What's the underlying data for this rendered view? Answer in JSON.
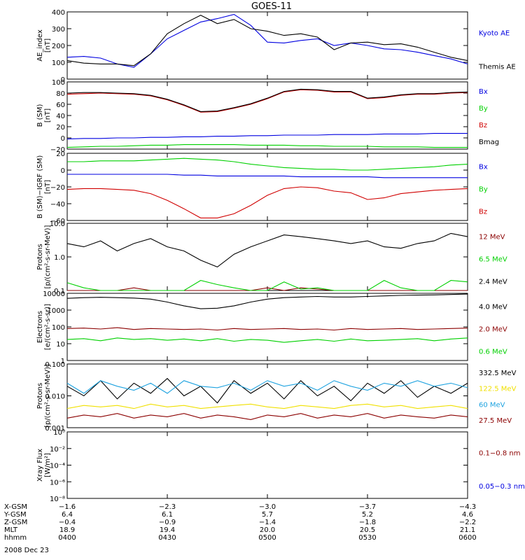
{
  "title": "GOES-11",
  "date_label": "2008 Dec 23",
  "colors": {
    "black": "#000000",
    "blue": "#0000e0",
    "green": "#00d000",
    "red": "#d00000",
    "darkred": "#8b0000",
    "cyan": "#1fa3e0",
    "yellow": "#f0e000"
  },
  "chart_data": [
    {
      "type": "line",
      "id": "ae",
      "ylabel": "AE_index\n[nT]",
      "yscale": "linear",
      "ylim": [
        0,
        400
      ],
      "yticks": [
        "0",
        "100",
        "200",
        "300",
        "400"
      ],
      "x": [
        0,
        5,
        10,
        15,
        20,
        25,
        30,
        35,
        40,
        45,
        50,
        55,
        60,
        65,
        70,
        75,
        80,
        85,
        90,
        95,
        100,
        105,
        110,
        115,
        120
      ],
      "series": [
        {
          "name": "Kyoto AE",
          "color": "blue",
          "values": [
            130,
            135,
            125,
            90,
            70,
            150,
            240,
            290,
            340,
            360,
            385,
            320,
            220,
            215,
            230,
            240,
            200,
            215,
            200,
            180,
            175,
            160,
            140,
            120,
            90
          ]
        },
        {
          "name": "Themis AE",
          "color": "black",
          "values": [
            110,
            95,
            90,
            90,
            80,
            150,
            270,
            330,
            380,
            330,
            355,
            300,
            285,
            260,
            270,
            250,
            175,
            215,
            220,
            205,
            210,
            190,
            160,
            130,
            110
          ]
        }
      ]
    },
    {
      "type": "line",
      "id": "bsm",
      "ylabel": "B (SM)\n[nT]",
      "yscale": "linear",
      "ylim": [
        -20,
        100
      ],
      "yticks": [
        "−20",
        "0",
        "20",
        "40",
        "60",
        "80",
        "100"
      ],
      "x": [
        0,
        5,
        10,
        15,
        20,
        25,
        30,
        35,
        40,
        45,
        50,
        55,
        60,
        65,
        70,
        75,
        80,
        85,
        90,
        95,
        100,
        105,
        110,
        115,
        120
      ],
      "series": [
        {
          "name": "Bx",
          "color": "blue",
          "values": [
            -2,
            -1,
            -1,
            0,
            0,
            1,
            1,
            2,
            2,
            3,
            3,
            4,
            4,
            5,
            5,
            5,
            6,
            6,
            6,
            7,
            7,
            7,
            8,
            8,
            8
          ]
        },
        {
          "name": "By",
          "color": "green",
          "values": [
            -17,
            -16,
            -15,
            -15,
            -14,
            -13,
            -13,
            -12,
            -12,
            -12,
            -12,
            -13,
            -13,
            -13,
            -14,
            -14,
            -15,
            -15,
            -15,
            -16,
            -16,
            -16,
            -17,
            -17,
            -17
          ]
        },
        {
          "name": "Bz",
          "color": "red",
          "values": [
            78,
            79,
            80,
            79,
            78,
            75,
            68,
            58,
            46,
            47,
            53,
            60,
            70,
            82,
            86,
            85,
            82,
            82,
            70,
            72,
            76,
            78,
            78,
            80,
            81
          ]
        },
        {
          "name": "Bmag",
          "color": "black",
          "values": [
            80,
            81,
            81,
            80,
            79,
            76,
            69,
            59,
            47,
            48,
            54,
            61,
            71,
            83,
            87,
            86,
            83,
            83,
            71,
            73,
            77,
            79,
            79,
            81,
            82
          ]
        }
      ]
    },
    {
      "type": "line",
      "id": "bsm_igrf",
      "ylabel": "B (SM)−IGRF (SM)\n[nT]",
      "yscale": "linear",
      "ylim": [
        -60,
        20
      ],
      "yticks": [
        "−60",
        "−40",
        "−20",
        "0",
        "20"
      ],
      "x": [
        0,
        5,
        10,
        15,
        20,
        25,
        30,
        35,
        40,
        45,
        50,
        55,
        60,
        65,
        70,
        75,
        80,
        85,
        90,
        95,
        100,
        105,
        110,
        115,
        120
      ],
      "series": [
        {
          "name": "Bx",
          "color": "blue",
          "values": [
            -5,
            -5,
            -5,
            -5,
            -5,
            -5,
            -5,
            -6,
            -6,
            -7,
            -7,
            -7,
            -7,
            -7,
            -8,
            -8,
            -8,
            -8,
            -8,
            -9,
            -9,
            -9,
            -9,
            -9,
            -9
          ]
        },
        {
          "name": "By",
          "color": "green",
          "values": [
            10,
            10,
            11,
            11,
            11,
            12,
            13,
            14,
            13,
            12,
            10,
            7,
            5,
            3,
            2,
            1,
            1,
            0,
            0,
            1,
            2,
            3,
            4,
            6,
            7
          ]
        },
        {
          "name": "Bz",
          "color": "red",
          "values": [
            -23,
            -22,
            -22,
            -23,
            -24,
            -28,
            -36,
            -46,
            -57,
            -57,
            -52,
            -42,
            -30,
            -22,
            -20,
            -21,
            -25,
            -27,
            -35,
            -33,
            -28,
            -26,
            -24,
            -23,
            -22
          ]
        }
      ]
    },
    {
      "type": "line",
      "id": "protons1",
      "ylabel": "Protons\n[p/(cm²-s-sr-MeV)]",
      "yscale": "log",
      "ylim": [
        0.1,
        10
      ],
      "yticks": [
        "0.1",
        "1.0",
        "10.0"
      ],
      "x": [
        0,
        5,
        10,
        15,
        20,
        25,
        30,
        35,
        40,
        45,
        50,
        55,
        60,
        65,
        70,
        75,
        80,
        85,
        90,
        95,
        100,
        105,
        110,
        115,
        120
      ],
      "series": [
        {
          "name": "12 MeV",
          "color": "darkred",
          "values": [
            0.08,
            0.08,
            0.08,
            0.09,
            0.12,
            0.08,
            0.08,
            0.08,
            0.08,
            0.08,
            0.08,
            0.08,
            0.12,
            0.08,
            0.12,
            0.11,
            0.08,
            0.08,
            0.08,
            0.08,
            0.08,
            0.08,
            0.08,
            0.08,
            0.08
          ]
        },
        {
          "name": "6.5 MeV",
          "color": "green",
          "values": [
            0.17,
            0.12,
            0.1,
            0.08,
            0.08,
            0.08,
            0.08,
            0.08,
            0.2,
            0.15,
            0.12,
            0.1,
            0.09,
            0.18,
            0.11,
            0.12,
            0.09,
            0.08,
            0.1,
            0.2,
            0.12,
            0.08,
            0.1,
            0.2,
            0.18
          ]
        },
        {
          "name": "2.4 MeV",
          "color": "black",
          "values": [
            2.5,
            2.0,
            3.0,
            1.5,
            2.5,
            3.5,
            2.0,
            1.5,
            0.8,
            0.5,
            1.2,
            2.0,
            3.0,
            4.5,
            4.0,
            3.5,
            3.0,
            2.5,
            3.0,
            2.0,
            1.8,
            2.5,
            3.0,
            5.0,
            4.0
          ]
        }
      ]
    },
    {
      "type": "line",
      "id": "electrons",
      "ylabel": "Electrons\n[e/(cm²-s-sr)]",
      "yscale": "log",
      "ylim": [
        1,
        10000
      ],
      "yticks": [
        "1",
        "10",
        "100",
        "1000",
        "10000"
      ],
      "x": [
        0,
        5,
        10,
        15,
        20,
        25,
        30,
        35,
        40,
        45,
        50,
        55,
        60,
        65,
        70,
        75,
        80,
        85,
        90,
        95,
        100,
        105,
        110,
        115,
        120
      ],
      "series": [
        {
          "name": "4.0 MeV",
          "color": "black",
          "values": [
            5000,
            5500,
            5800,
            5500,
            5200,
            4500,
            3000,
            1800,
            1200,
            1300,
            1800,
            3000,
            4500,
            5500,
            6000,
            6500,
            6000,
            6000,
            6500,
            7000,
            7500,
            7800,
            8000,
            8500,
            9000
          ]
        },
        {
          "name": "2.0 MeV",
          "color": "darkred",
          "values": [
            80,
            85,
            75,
            90,
            70,
            80,
            75,
            70,
            75,
            65,
            80,
            70,
            75,
            80,
            70,
            75,
            65,
            80,
            70,
            75,
            80,
            70,
            75,
            80,
            85
          ]
        },
        {
          "name": "0.6 MeV",
          "color": "green",
          "values": [
            18,
            20,
            15,
            22,
            18,
            20,
            16,
            19,
            15,
            20,
            14,
            18,
            16,
            12,
            15,
            18,
            14,
            19,
            15,
            16,
            18,
            20,
            15,
            19,
            22
          ]
        }
      ]
    },
    {
      "type": "line",
      "id": "protons2",
      "ylabel": "Protons\n[p/(cm²-s-sr-MeV)]",
      "yscale": "log",
      "ylim": [
        0.001,
        0.1
      ],
      "yticks": [
        "0.001",
        "0.010",
        "0.100"
      ],
      "x": [
        0,
        5,
        10,
        15,
        20,
        25,
        30,
        35,
        40,
        45,
        50,
        55,
        60,
        65,
        70,
        75,
        80,
        85,
        90,
        95,
        100,
        105,
        110,
        115,
        120
      ],
      "series": [
        {
          "name": "332.5 MeV",
          "color": "black",
          "values": [
            0.02,
            0.01,
            0.03,
            0.008,
            0.025,
            0.012,
            0.035,
            0.01,
            0.02,
            0.006,
            0.03,
            0.012,
            0.025,
            0.008,
            0.03,
            0.01,
            0.02,
            0.007,
            0.025,
            0.012,
            0.03,
            0.009,
            0.02,
            0.012,
            0.025
          ]
        },
        {
          "name": "122.5 MeV",
          "color": "yellow",
          "values": [
            0.004,
            0.005,
            0.0045,
            0.005,
            0.004,
            0.0055,
            0.0045,
            0.005,
            0.004,
            0.0045,
            0.005,
            0.0055,
            0.0045,
            0.004,
            0.005,
            0.0045,
            0.004,
            0.005,
            0.0055,
            0.0045,
            0.005,
            0.004,
            0.0045,
            0.005,
            0.004
          ]
        },
        {
          "name": "60 MeV",
          "color": "cyan",
          "values": [
            0.025,
            0.012,
            0.03,
            0.02,
            0.015,
            0.025,
            0.012,
            0.03,
            0.02,
            0.018,
            0.025,
            0.015,
            0.03,
            0.02,
            0.025,
            0.015,
            0.03,
            0.02,
            0.015,
            0.025,
            0.02,
            0.03,
            0.02,
            0.025,
            0.018
          ]
        },
        {
          "name": "27.5 MeV",
          "color": "darkred",
          "values": [
            0.002,
            0.0025,
            0.0022,
            0.0028,
            0.002,
            0.0025,
            0.0022,
            0.0028,
            0.002,
            0.0025,
            0.0022,
            0.0018,
            0.0025,
            0.0022,
            0.0028,
            0.002,
            0.0025,
            0.0022,
            0.0028,
            0.002,
            0.0025,
            0.0022,
            0.002,
            0.0025,
            0.0022
          ]
        }
      ]
    },
    {
      "type": "line",
      "id": "xray",
      "ylabel": "Xray Flux\n[W/m²]",
      "yscale": "log",
      "ylim": [
        1e-09,
        1
      ],
      "yticks": [
        "10⁻⁸",
        "10⁻⁶",
        "10⁻⁴",
        "10⁻²",
        "10⁰"
      ],
      "x": [],
      "series": [
        {
          "name": "0.1−0.8 nm",
          "color": "darkred",
          "values": []
        },
        {
          "name": "0.05−0.3 nm",
          "color": "blue",
          "values": []
        }
      ]
    }
  ],
  "x_axis": {
    "row_labels": [
      "X-GSM",
      "Y-GSM",
      "Z-GSM",
      "MLT",
      "hhmm"
    ],
    "columns": [
      {
        "values": [
          "−1.6",
          "6.4",
          "−0.4",
          "18.9",
          "0400"
        ]
      },
      {
        "values": [
          "−2.3",
          "6.1",
          "−0.9",
          "19.4",
          "0430"
        ]
      },
      {
        "values": [
          "−3.0",
          "5.7",
          "−1.4",
          "20.0",
          "0500"
        ]
      },
      {
        "values": [
          "−3.7",
          "5.2",
          "−1.8",
          "20.5",
          "0530"
        ]
      },
      {
        "values": [
          "−4.3",
          "4.6",
          "−2.2",
          "21.1",
          "0600"
        ]
      }
    ]
  }
}
